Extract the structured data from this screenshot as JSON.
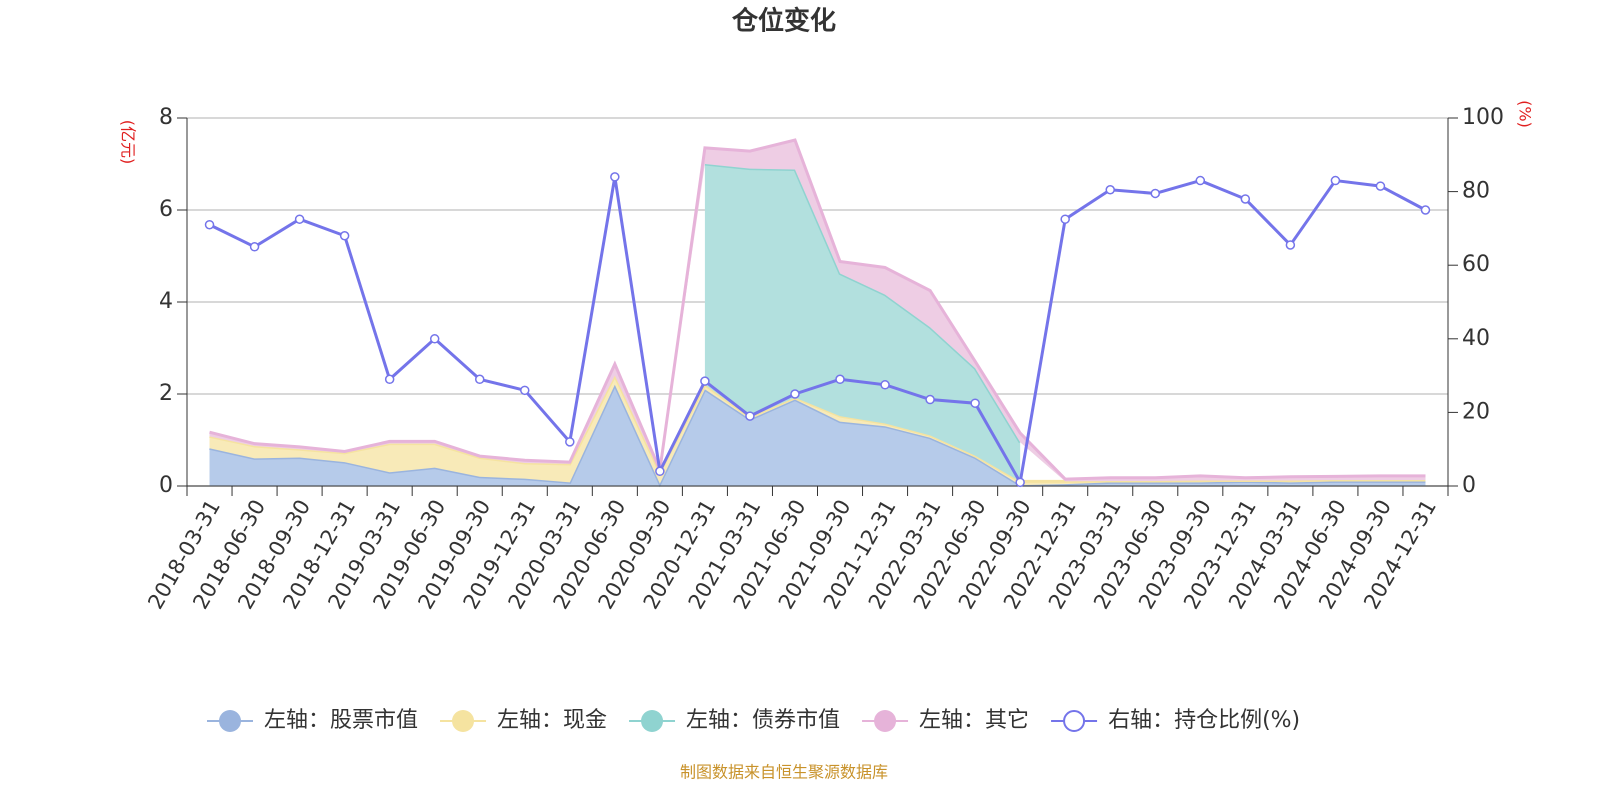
{
  "chart_data": {
    "type": "stacked-area-line",
    "title": "仓位变化",
    "y_label": "(亿元)",
    "y2_label": "(%)",
    "source": "制图数据来自恒生聚源数据库",
    "categories": [
      "2018-03-31",
      "2018-06-30",
      "2018-09-30",
      "2018-12-31",
      "2019-03-31",
      "2019-06-30",
      "2019-09-30",
      "2019-12-31",
      "2020-03-31",
      "2020-06-30",
      "2020-09-30",
      "2020-12-31",
      "2021-03-31",
      "2021-06-30",
      "2021-09-30",
      "2021-12-31",
      "2022-03-31",
      "2022-06-30",
      "2022-09-30",
      "2022-12-31",
      "2023-03-31",
      "2023-06-30",
      "2023-09-30",
      "2023-12-31",
      "2024-03-31",
      "2024-06-30",
      "2024-09-30",
      "2024-12-31"
    ],
    "series": [
      {
        "name": "左轴：股票市值",
        "color": "#9ab4de",
        "fill": "#b6cbea",
        "axis": "y",
        "values": [
          0.82,
          0.6,
          0.62,
          0.52,
          0.3,
          0.4,
          0.2,
          0.16,
          0.08,
          2.2,
          0.05,
          2.1,
          1.45,
          1.88,
          1.4,
          1.3,
          1.05,
          0.62,
          0.02,
          0.04,
          0.08,
          0.08,
          0.08,
          0.1,
          0.08,
          0.1,
          0.1,
          0.1
        ]
      },
      {
        "name": "左轴：现金",
        "color": "#f5e3a0",
        "fill": "#f8eab8",
        "axis": "y",
        "values": [
          0.26,
          0.27,
          0.18,
          0.2,
          0.62,
          0.52,
          0.42,
          0.34,
          0.4,
          0.2,
          0.25,
          0.1,
          0.05,
          0.04,
          0.12,
          0.06,
          0.05,
          0.04,
          0.08,
          0.06,
          0.03,
          0.03,
          0.04,
          0.02,
          0.04,
          0.03,
          0.03,
          0.03
        ]
      },
      {
        "name": "左轴：债券市值",
        "color": "#8fd3d0",
        "fill": "#b2e0de",
        "axis": "y",
        "values": [
          null,
          null,
          null,
          null,
          null,
          null,
          null,
          null,
          null,
          null,
          null,
          4.8,
          5.4,
          4.96,
          3.1,
          2.8,
          2.35,
          1.9,
          0.85,
          null,
          null,
          null,
          null,
          null,
          null,
          null,
          null,
          null
        ]
      },
      {
        "name": "左轴：其它",
        "color": "#e6b3d9",
        "fill": "#eecde4",
        "axis": "y",
        "values": [
          0.09,
          0.05,
          0.05,
          0.03,
          0.05,
          0.05,
          0.03,
          0.06,
          0.04,
          0.25,
          0.05,
          0.35,
          0.38,
          0.64,
          0.26,
          0.59,
          0.8,
          0.15,
          0.2,
          0.05,
          0.07,
          0.07,
          0.1,
          0.06,
          0.08,
          0.08,
          0.09,
          0.09
        ]
      },
      {
        "name": "右轴：持仓比例(%)",
        "color": "#7474ea",
        "axis": "y2",
        "values": [
          71,
          65,
          72.5,
          68,
          29,
          40,
          29,
          26,
          12,
          84,
          4,
          28.5,
          19,
          25,
          29,
          27.5,
          23.5,
          22.5,
          1,
          72.5,
          80.5,
          79.5,
          83,
          78,
          65.5,
          83,
          81.5,
          75
        ]
      }
    ],
    "ylim": [
      0,
      8
    ],
    "yticks": [
      0,
      2,
      4,
      6,
      8
    ],
    "y2lim": [
      0,
      100
    ],
    "y2ticks": [
      0,
      20,
      40,
      60,
      80,
      100
    ],
    "grid": true
  }
}
